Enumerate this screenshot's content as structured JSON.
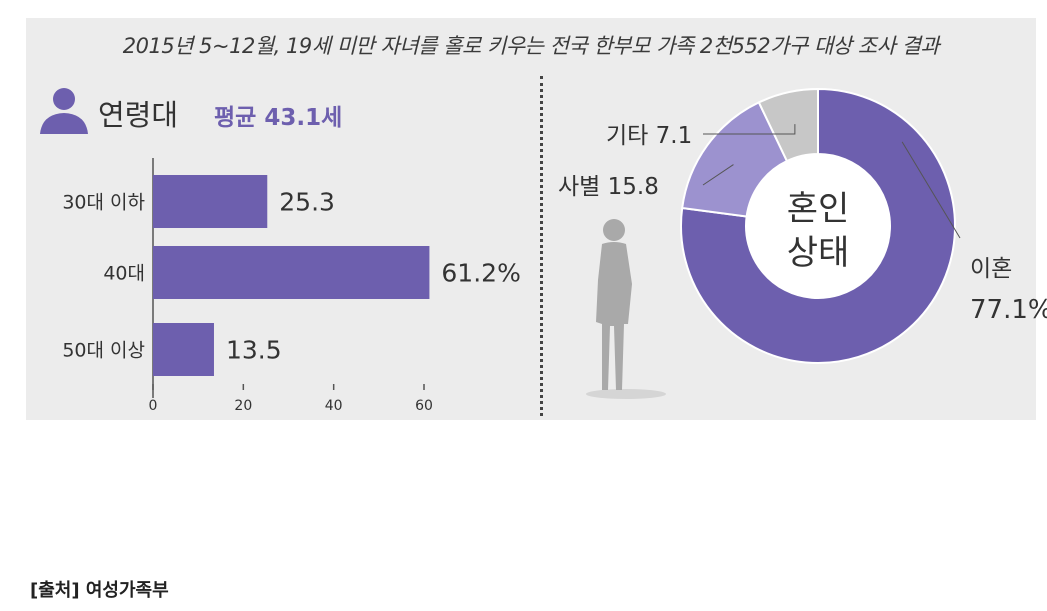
{
  "title": "2015년 5~12월, 19세 미만 자녀를 홀로 키우는 전국 한부모 가족 2천552가구 대상 조사 결과",
  "age_panel": {
    "heading": "연령대",
    "average": "평균 43.1세"
  },
  "donut_panel": {
    "center_line1": "혼인",
    "center_line2": "상태"
  },
  "source": "[출처] 여성가족부",
  "colors": {
    "accent": "#6d5fae",
    "mid": "#9c92cf",
    "light": "#c7c7c7",
    "panel": "#ececec"
  },
  "chart_data": [
    {
      "type": "bar",
      "orientation": "horizontal",
      "categories": [
        "30대 이하",
        "40대",
        "50대 이상"
      ],
      "values": [
        25.3,
        61.2,
        13.5
      ],
      "value_labels": [
        "25.3",
        "61.2%",
        "13.5"
      ],
      "xlim": [
        0,
        60
      ],
      "xticks": [
        "0",
        "20",
        "40",
        "60"
      ],
      "grid": false
    },
    {
      "type": "pie",
      "variant": "donut",
      "slices": [
        {
          "label": "이혼",
          "value": 77.1,
          "value_label": "77.1%",
          "color": "#6d5fae"
        },
        {
          "label": "사별",
          "value": 15.8,
          "value_label": "15.8",
          "color": "#9c92cf"
        },
        {
          "label": "기타",
          "value": 7.1,
          "value_label": "7.1",
          "color": "#c7c7c7"
        }
      ]
    }
  ]
}
